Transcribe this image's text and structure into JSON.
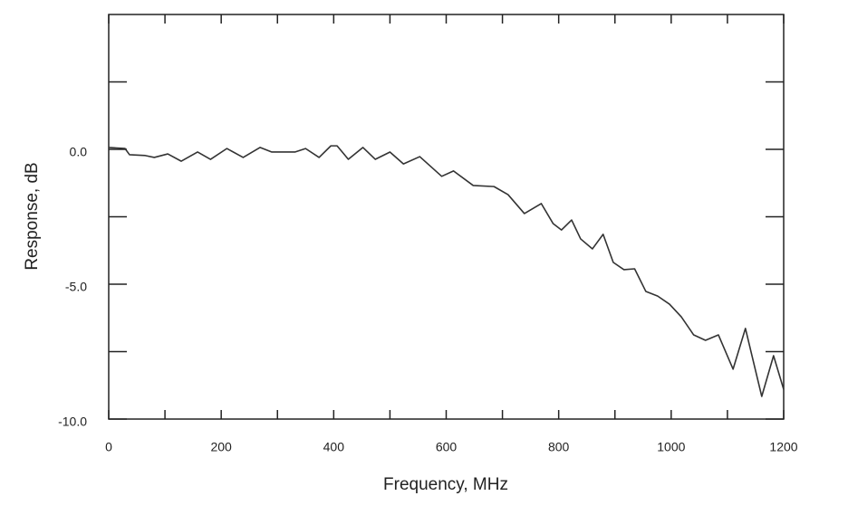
{
  "chart_data": {
    "type": "line",
    "x_label": "Frequency, MHz",
    "y_label": "Response, dB",
    "color": "#333333",
    "x": [
      0,
      29,
      37,
      65,
      81,
      105,
      129,
      158,
      181,
      210,
      239,
      269,
      290,
      331,
      350,
      374,
      395,
      406,
      426,
      452,
      474,
      500,
      524,
      553,
      592,
      613,
      648,
      685,
      710,
      739,
      769,
      790,
      805,
      823,
      839,
      860,
      879,
      897,
      916,
      935,
      955,
      976,
      997,
      1018,
      1040,
      1061,
      1084,
      1110,
      1132,
      1161,
      1182,
      1200
    ],
    "values": [
      0.07,
      0.03,
      -0.2,
      -0.23,
      -0.3,
      -0.17,
      -0.44,
      -0.1,
      -0.37,
      0.03,
      -0.3,
      0.07,
      -0.1,
      -0.1,
      0.03,
      -0.3,
      0.13,
      0.13,
      -0.37,
      0.07,
      -0.37,
      -0.1,
      -0.54,
      -0.27,
      -1.0,
      -0.8,
      -1.34,
      -1.38,
      -1.68,
      -2.38,
      -2.01,
      -2.75,
      -2.99,
      -2.62,
      -3.32,
      -3.69,
      -3.15,
      -4.19,
      -4.46,
      -4.43,
      -5.27,
      -5.44,
      -5.74,
      -6.21,
      -6.88,
      -7.08,
      -6.88,
      -8.15,
      -6.64,
      -9.16,
      -7.65,
      -8.9
    ],
    "xlim": [
      0,
      1200
    ],
    "xticks": [
      0,
      200,
      400,
      600,
      800,
      1000,
      1200
    ],
    "minor_xticks": [
      100,
      300,
      500,
      700,
      900,
      1100
    ],
    "ylim": [
      -10,
      5
    ],
    "yticks": [
      {
        "value": 0,
        "label": "0.0"
      },
      {
        "value": -5,
        "label": "-5.0"
      },
      {
        "value": -10,
        "label": "-10.0"
      }
    ],
    "minor_yticks": [
      -7.5,
      -2.5,
      2.5
    ],
    "grid": false
  }
}
